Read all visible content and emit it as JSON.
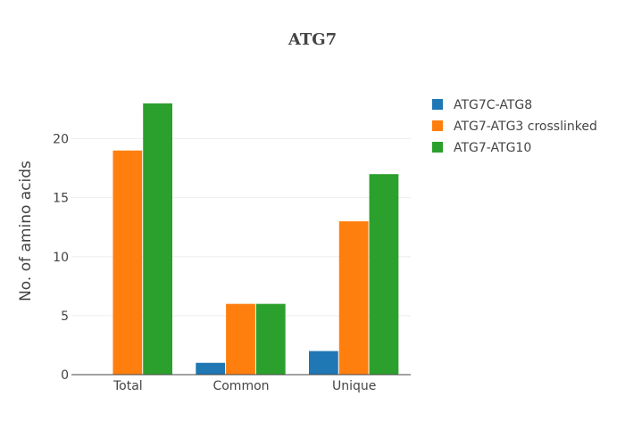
{
  "chart_data": {
    "type": "bar",
    "title": "ATG7",
    "xlabel": "",
    "ylabel": "No. of amino acids",
    "categories": [
      "Total",
      "Common",
      "Unique"
    ],
    "series": [
      {
        "name": "ATG7C-ATG8",
        "values": [
          0,
          1,
          2
        ],
        "color": "#1f77b4"
      },
      {
        "name": "ATG7-ATG3 crosslinked",
        "values": [
          19,
          6,
          13
        ],
        "color": "#ff7f0e"
      },
      {
        "name": "ATG7-ATG10",
        "values": [
          23,
          6,
          17
        ],
        "color": "#2ca02c"
      }
    ],
    "yticks": [
      0,
      5,
      10,
      15,
      20
    ],
    "ylim": [
      0,
      24.2
    ],
    "grid": true,
    "legend_position": "top-right"
  }
}
